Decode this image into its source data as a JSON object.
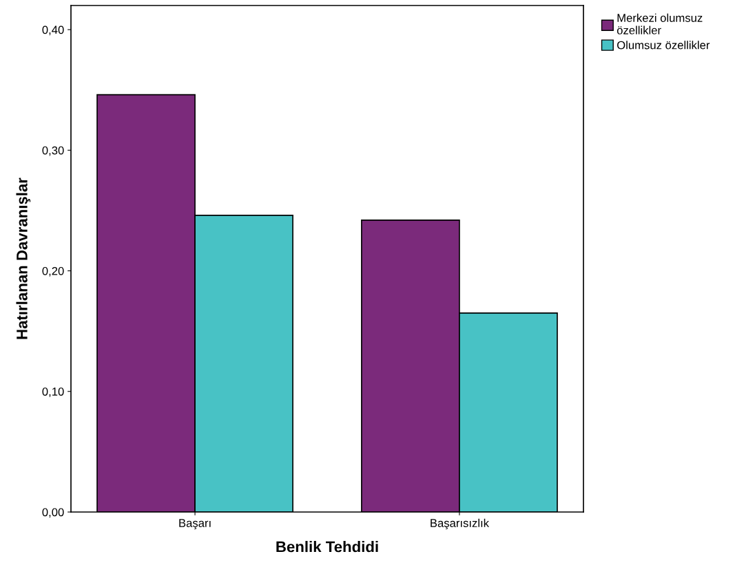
{
  "chart_data": {
    "type": "bar",
    "xlabel": "Benlik Tehdidi",
    "ylabel": "Hatırlanan Davranışlar",
    "categories": [
      "Başarı",
      "Başarısızlık"
    ],
    "series": [
      {
        "name": "Merkezi olumsuz\nözellikler",
        "color": "#7b2a7b",
        "values": [
          0.346,
          0.242
        ]
      },
      {
        "name": "Olumsuz özellikler",
        "color": "#48c2c5",
        "values": [
          0.246,
          0.165
        ]
      }
    ],
    "ylim": [
      0,
      0.42
    ],
    "yticks": [
      {
        "value": 0,
        "label": "0,00"
      },
      {
        "value": 0.1,
        "label": "0,10"
      },
      {
        "value": 0.2,
        "label": "0,20"
      },
      {
        "value": 0.3,
        "label": "0,30"
      },
      {
        "value": 0.4,
        "label": "0,40"
      }
    ],
    "grid": false,
    "legend": "top right"
  }
}
